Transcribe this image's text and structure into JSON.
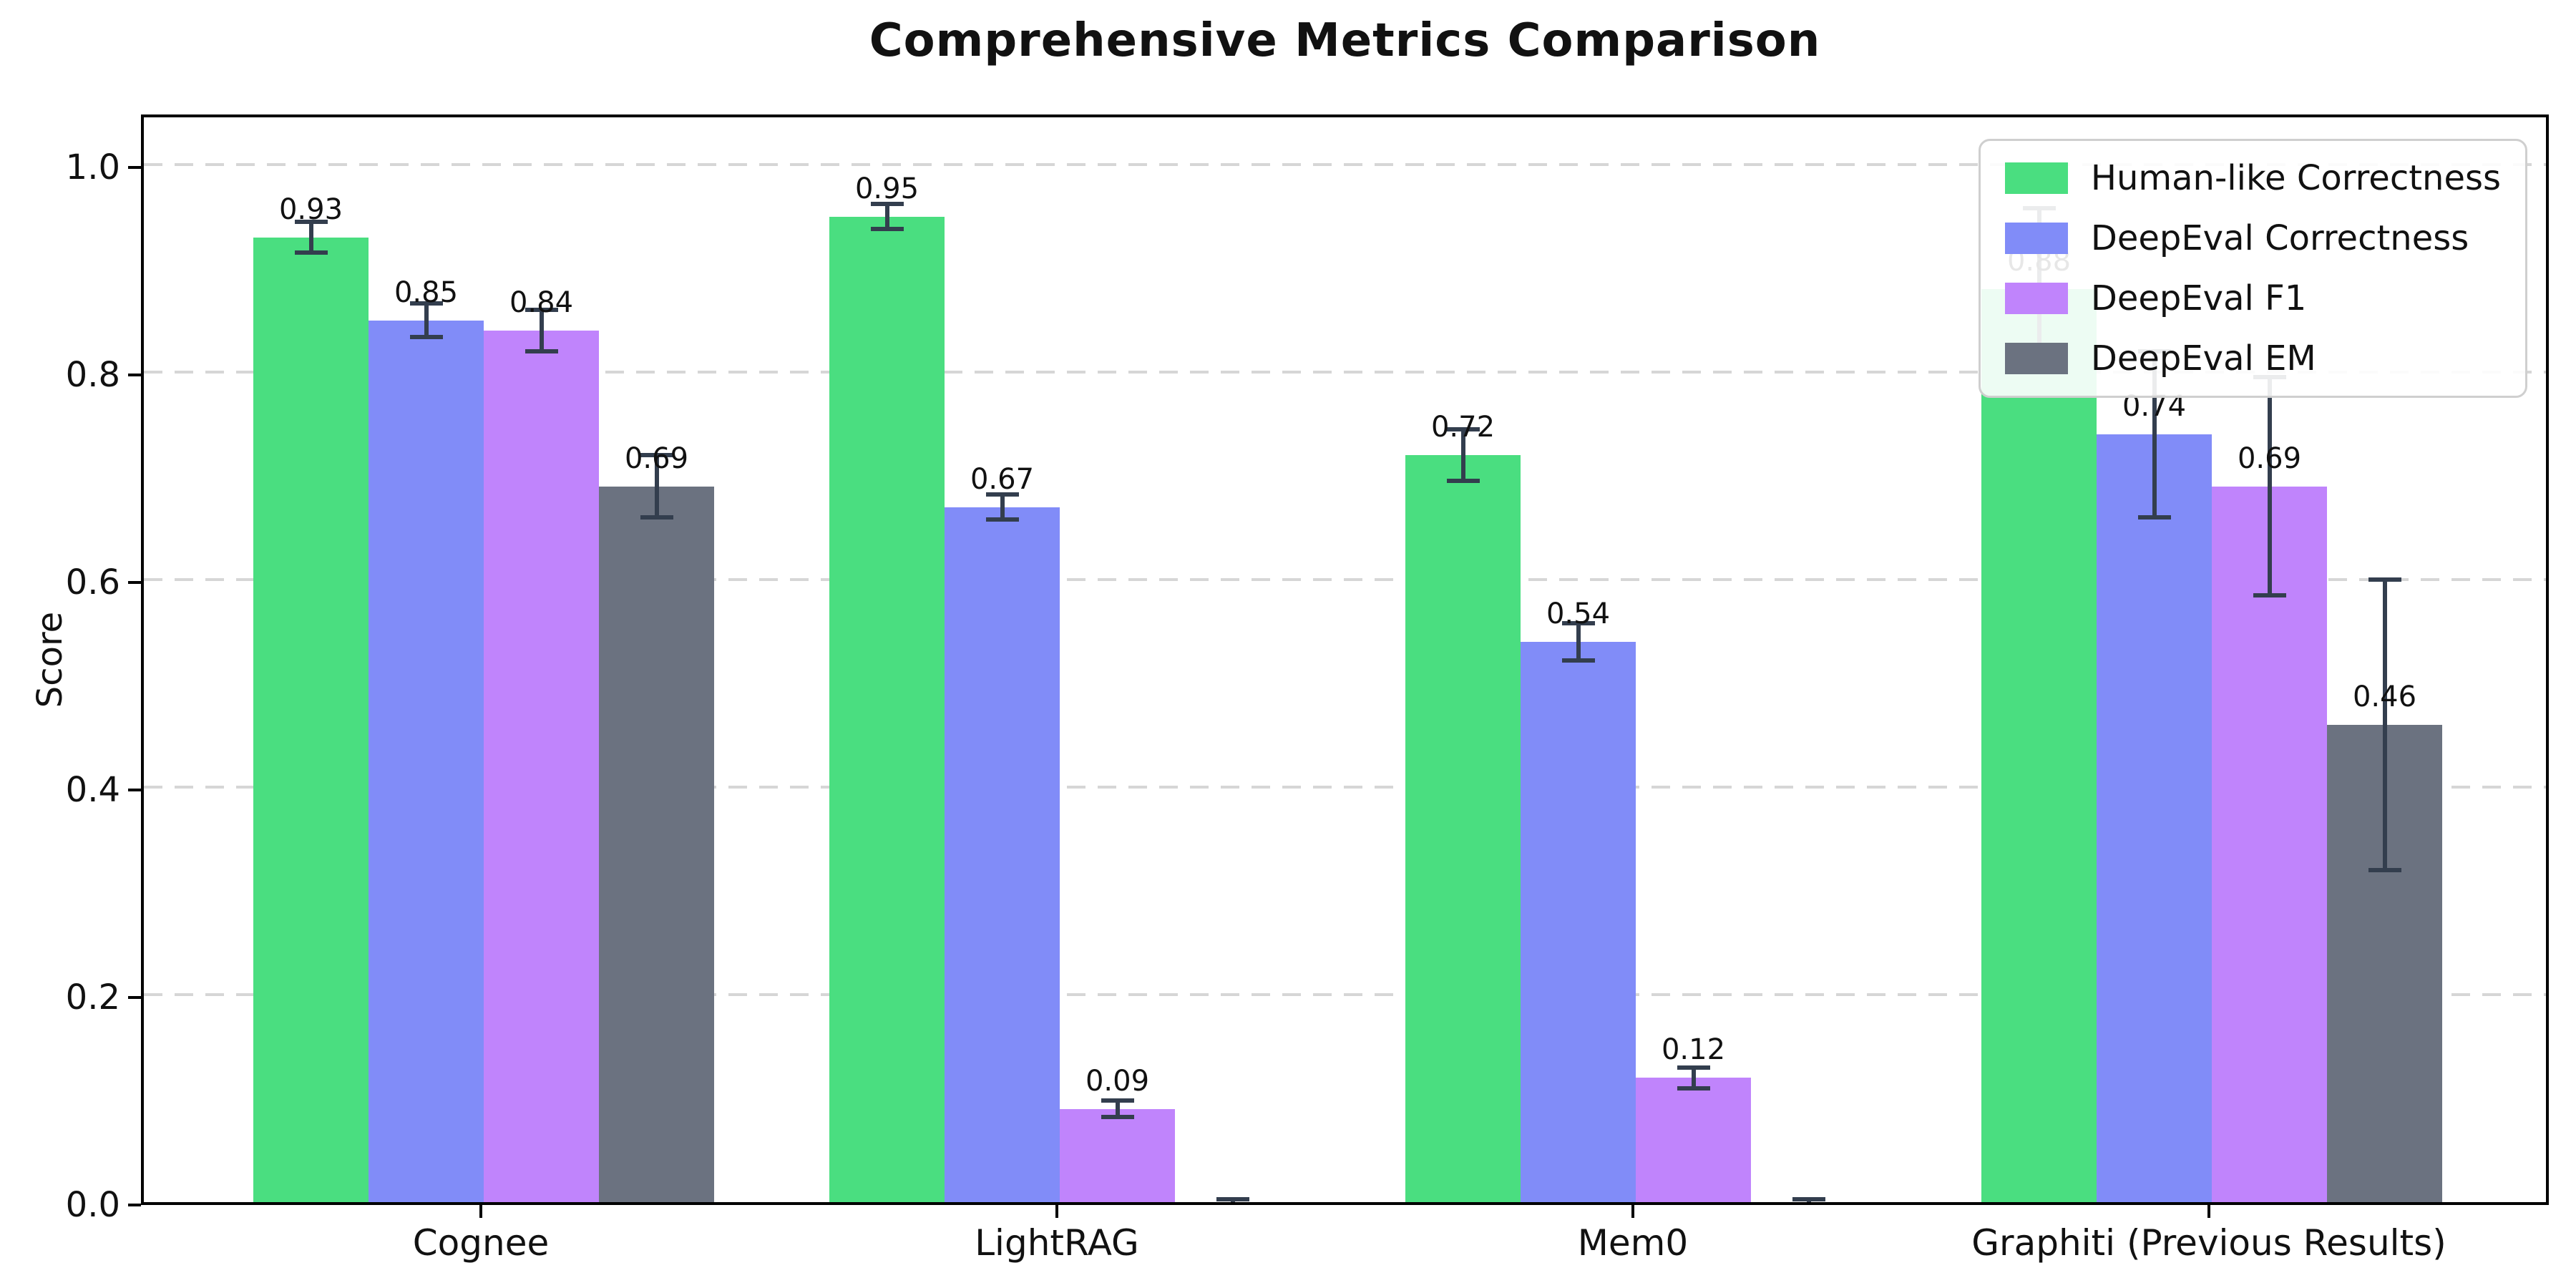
{
  "chart_data": {
    "type": "bar",
    "title": "Comprehensive Metrics Comparison",
    "xlabel": "",
    "ylabel": "Score",
    "categories": [
      "Cognee",
      "LightRAG",
      "Mem0",
      "Graphiti (Previous Results)"
    ],
    "series": [
      {
        "name": "Human-like Correctness",
        "color": "#4ade80",
        "values": [
          0.93,
          0.95,
          0.72,
          0.88
        ],
        "errors": [
          0.015,
          0.012,
          0.025,
          0.078
        ],
        "labels": [
          "0.93",
          "0.95",
          "0.72",
          "0.88"
        ]
      },
      {
        "name": "DeepEval Correctness",
        "color": "#818cf8",
        "values": [
          0.85,
          0.67,
          0.54,
          0.74
        ],
        "errors": [
          0.016,
          0.012,
          0.018,
          0.08
        ],
        "labels": [
          "0.85",
          "0.67",
          "0.54",
          "0.74"
        ]
      },
      {
        "name": "DeepEval F1",
        "color": "#c084fc",
        "values": [
          0.84,
          0.09,
          0.12,
          0.69
        ],
        "errors": [
          0.02,
          0.008,
          0.01,
          0.105
        ],
        "labels": [
          "0.84",
          "0.09",
          "0.12",
          "0.69"
        ]
      },
      {
        "name": "DeepEval EM",
        "color": "#6b7280",
        "values": [
          0.69,
          0.0,
          0.0,
          0.46
        ],
        "errors": [
          0.03,
          0.003,
          0.003,
          0.14
        ],
        "labels": [
          "0.69",
          "",
          "",
          "0.46"
        ]
      }
    ],
    "yticks": {
      "labels": [
        "0.0",
        "0.2",
        "0.4",
        "0.6",
        "0.8",
        "1.0"
      ],
      "values": [
        0.0,
        0.2,
        0.4,
        0.6,
        0.8,
        1.0
      ]
    },
    "ylim": [
      0.0,
      1.05
    ],
    "grid": "horizontal-dashed",
    "legend_position": "upper-right",
    "colors": {
      "error_bar": "#333e4e",
      "grid": "#d6d6d6",
      "spine": "#000000",
      "background": "#ffffff"
    }
  }
}
